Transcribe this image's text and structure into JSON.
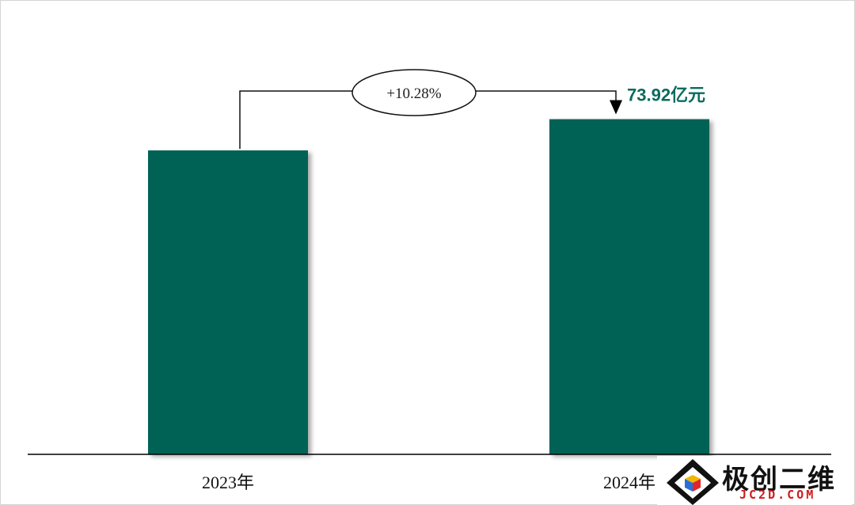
{
  "chart_data": {
    "type": "bar",
    "categories": [
      "2023年",
      "2024年"
    ],
    "values": [
      67.03,
      73.92
    ],
    "value_label": "73.92亿元",
    "growth_annotation": "+10.28%",
    "ylim": [
      0,
      81
    ],
    "grid": false,
    "legend": "none",
    "colors": {
      "bar": "#066254",
      "label": "#0a6b5d",
      "axis": "#000000"
    }
  },
  "watermark": {
    "text": "极创二维",
    "subtext": "JC2D.COM",
    "logo_icon": "cube-in-diamond-icon"
  }
}
